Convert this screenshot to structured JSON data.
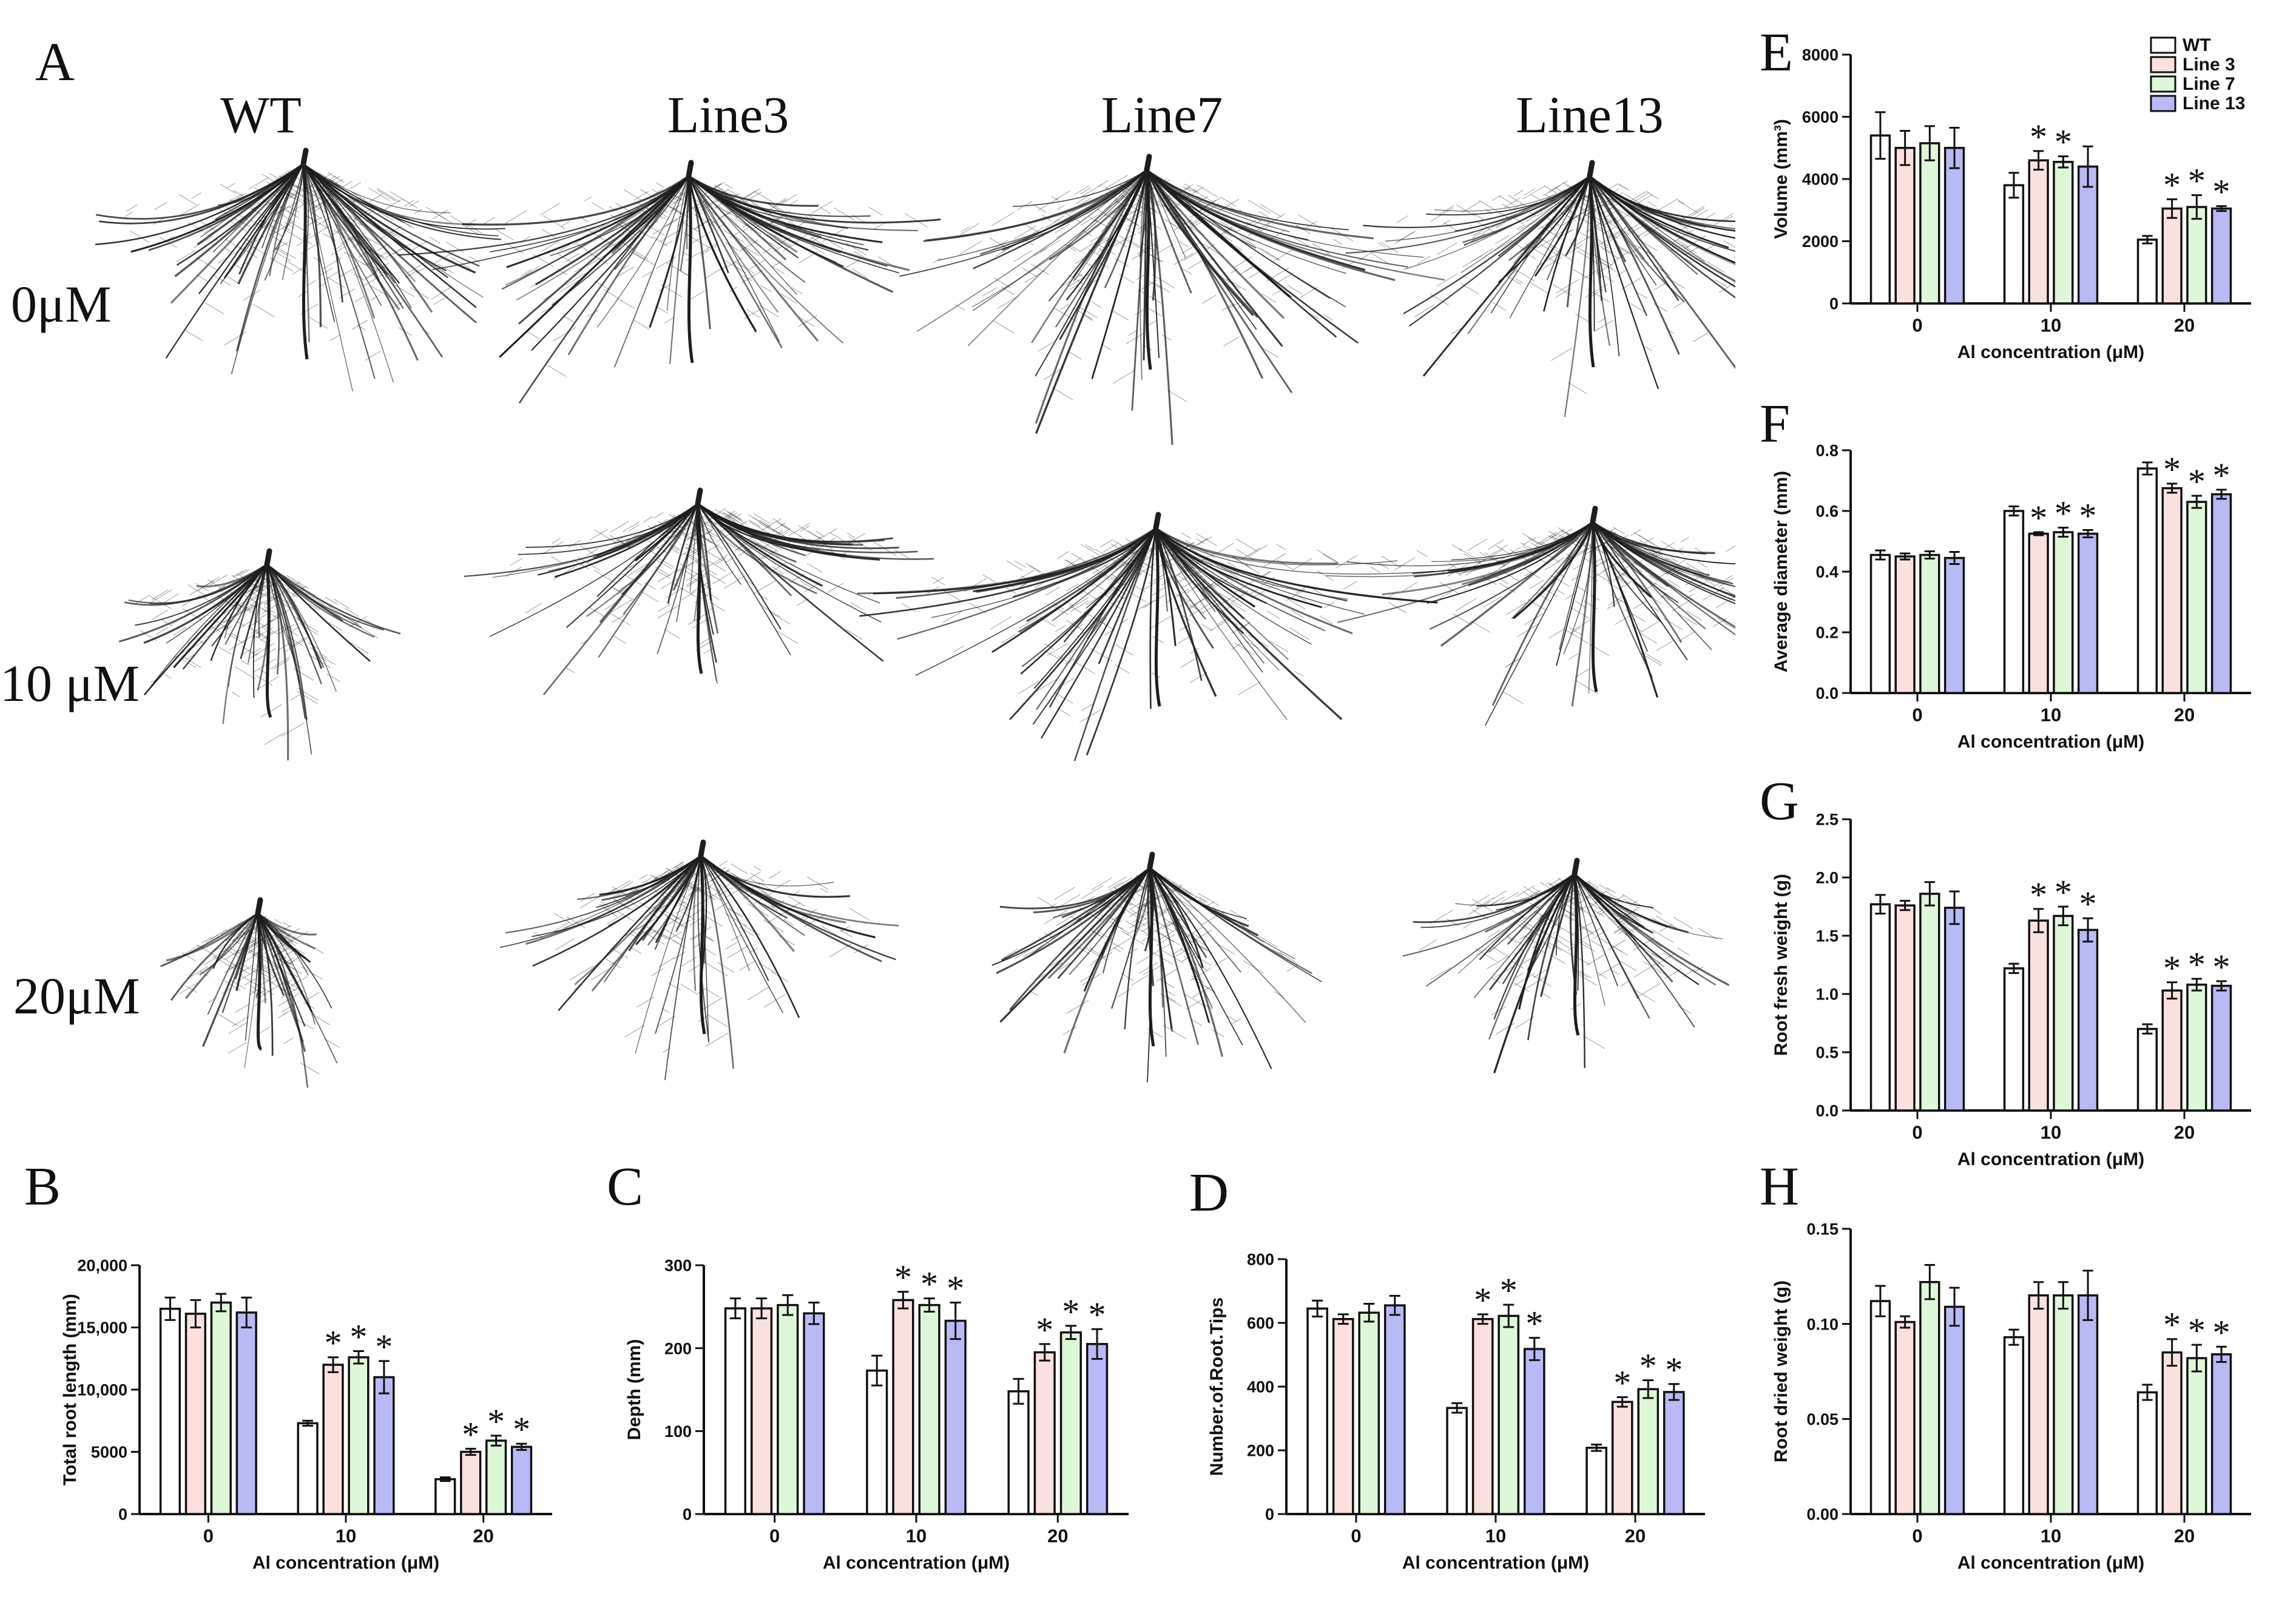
{
  "figure": {
    "photo_panel": {
      "letter": "A",
      "columns": [
        "WT",
        "Line3",
        "Line7",
        "Line13"
      ],
      "rows": [
        "0μM",
        "10 μM",
        "20μM"
      ]
    },
    "legend": [
      "WT",
      "Line 3",
      "Line 7",
      "Line 13"
    ]
  },
  "colors": {
    "series": [
      "#ffffff",
      "#fbe1dd",
      "#def7d8",
      "#b8baf6"
    ],
    "stroke": "#111111",
    "root": "#1e1e1e"
  },
  "chart_data": [
    {
      "id": "E",
      "type": "bar",
      "title": "",
      "xlabel": "Al concentration (μM)",
      "ylabel": "Volume (mm³)",
      "categories": [
        "0",
        "10",
        "20"
      ],
      "ylim": [
        0,
        8000
      ],
      "yticks": [
        "0",
        "2000",
        "4000",
        "6000",
        "8000"
      ],
      "series": [
        {
          "name": "WT",
          "values": [
            5400,
            3800,
            2050
          ],
          "errors": [
            750,
            400,
            120
          ]
        },
        {
          "name": "Line 3",
          "values": [
            5000,
            4600,
            3050
          ],
          "errors": [
            550,
            300,
            300
          ]
        },
        {
          "name": "Line 7",
          "values": [
            5150,
            4550,
            3100
          ],
          "errors": [
            550,
            180,
            380
          ]
        },
        {
          "name": "Line 13",
          "values": [
            5000,
            4400,
            3050
          ],
          "errors": [
            650,
            650,
            80
          ]
        }
      ],
      "significant": [
        [
          false,
          false,
          false
        ],
        [
          false,
          true,
          true
        ],
        [
          false,
          true,
          true
        ],
        [
          false,
          false,
          true
        ]
      ],
      "annotation": "*"
    },
    {
      "id": "F",
      "type": "bar",
      "title": "",
      "xlabel": "Al concentration (μM)",
      "ylabel": "Average diameter  (mm)",
      "categories": [
        "0",
        "10",
        "20"
      ],
      "ylim": [
        0,
        0.8
      ],
      "yticks": [
        "0.0",
        "0.2",
        "0.4",
        "0.6",
        "0.8"
      ],
      "series": [
        {
          "name": "WT",
          "values": [
            0.455,
            0.6,
            0.74
          ],
          "errors": [
            0.015,
            0.015,
            0.02
          ]
        },
        {
          "name": "Line 3",
          "values": [
            0.45,
            0.525,
            0.675
          ],
          "errors": [
            0.01,
            0.005,
            0.015
          ]
        },
        {
          "name": "Line 7",
          "values": [
            0.455,
            0.53,
            0.63
          ],
          "errors": [
            0.012,
            0.015,
            0.02
          ]
        },
        {
          "name": "Line 13",
          "values": [
            0.445,
            0.525,
            0.655
          ],
          "errors": [
            0.02,
            0.012,
            0.015
          ]
        }
      ],
      "significant": [
        [
          false,
          false,
          false
        ],
        [
          false,
          true,
          true
        ],
        [
          false,
          true,
          true
        ],
        [
          false,
          true,
          true
        ]
      ],
      "annotation": "*"
    },
    {
      "id": "G",
      "type": "bar",
      "title": "",
      "xlabel": "Al concentration (μM)",
      "ylabel": "Root fresh weight (g)",
      "categories": [
        "0",
        "10",
        "20"
      ],
      "ylim": [
        0,
        2.5
      ],
      "yticks": [
        "0.0",
        "0.5",
        "1.0",
        "1.5",
        "2.0",
        "2.5"
      ],
      "series": [
        {
          "name": "WT",
          "values": [
            1.77,
            1.22,
            0.7
          ],
          "errors": [
            0.08,
            0.04,
            0.04
          ]
        },
        {
          "name": "Line 3",
          "values": [
            1.76,
            1.63,
            1.03
          ],
          "errors": [
            0.04,
            0.1,
            0.07
          ]
        },
        {
          "name": "Line 7",
          "values": [
            1.86,
            1.67,
            1.08
          ],
          "errors": [
            0.1,
            0.08,
            0.05
          ]
        },
        {
          "name": "Line 13",
          "values": [
            1.74,
            1.55,
            1.07
          ],
          "errors": [
            0.14,
            0.1,
            0.04
          ]
        }
      ],
      "significant": [
        [
          false,
          false,
          false
        ],
        [
          false,
          true,
          true
        ],
        [
          false,
          true,
          true
        ],
        [
          false,
          true,
          true
        ]
      ],
      "annotation": "*"
    },
    {
      "id": "H",
      "type": "bar",
      "title": "",
      "xlabel": "Al concentration (μM)",
      "ylabel": "Root dried weight (g)",
      "categories": [
        "0",
        "10",
        "20"
      ],
      "ylim": [
        0,
        0.15
      ],
      "yticks": [
        "0.00",
        "0.05",
        "0.10",
        "0.15"
      ],
      "series": [
        {
          "name": "WT",
          "values": [
            0.112,
            0.093,
            0.064
          ],
          "errors": [
            0.008,
            0.004,
            0.004
          ]
        },
        {
          "name": "Line 3",
          "values": [
            0.101,
            0.115,
            0.085
          ],
          "errors": [
            0.003,
            0.007,
            0.007
          ]
        },
        {
          "name": "Line 7",
          "values": [
            0.122,
            0.115,
            0.082
          ],
          "errors": [
            0.009,
            0.007,
            0.007
          ]
        },
        {
          "name": "Line 13",
          "values": [
            0.109,
            0.115,
            0.084
          ],
          "errors": [
            0.01,
            0.013,
            0.004
          ]
        }
      ],
      "significant": [
        [
          false,
          false,
          false
        ],
        [
          false,
          false,
          true
        ],
        [
          false,
          false,
          true
        ],
        [
          false,
          false,
          true
        ]
      ],
      "annotation": "*"
    },
    {
      "id": "B",
      "type": "bar",
      "title": "",
      "xlabel": "Al concentration (μM)",
      "ylabel": "Total root length (mm)",
      "categories": [
        "0",
        "10",
        "20"
      ],
      "ylim": [
        0,
        20000
      ],
      "yticks": [
        "0",
        "5000",
        "10,000",
        "15,000",
        "20,000"
      ],
      "series": [
        {
          "name": "WT",
          "values": [
            16500,
            7300,
            2800
          ],
          "errors": [
            900,
            200,
            150
          ]
        },
        {
          "name": "Line 3",
          "values": [
            16100,
            12000,
            5000
          ],
          "errors": [
            1100,
            600,
            250
          ]
        },
        {
          "name": "Line 7",
          "values": [
            17000,
            12600,
            5900
          ],
          "errors": [
            700,
            500,
            400
          ]
        },
        {
          "name": "Line 13",
          "values": [
            16200,
            11000,
            5400
          ],
          "errors": [
            1200,
            1300,
            250
          ]
        }
      ],
      "significant": [
        [
          false,
          false,
          false
        ],
        [
          false,
          true,
          true
        ],
        [
          false,
          true,
          true
        ],
        [
          false,
          true,
          true
        ]
      ],
      "annotation": "*"
    },
    {
      "id": "C",
      "type": "bar",
      "title": "",
      "xlabel": "Al concentration (μM)",
      "ylabel": "Depth  (mm)",
      "categories": [
        "0",
        "10",
        "20"
      ],
      "ylim": [
        0,
        300
      ],
      "yticks": [
        "0",
        "100",
        "200",
        "300"
      ],
      "series": [
        {
          "name": "WT",
          "values": [
            248,
            173,
            148
          ],
          "errors": [
            12,
            18,
            15
          ]
        },
        {
          "name": "Line 3",
          "values": [
            248,
            258,
            195
          ],
          "errors": [
            12,
            10,
            10
          ]
        },
        {
          "name": "Line 7",
          "values": [
            252,
            252,
            219
          ],
          "errors": [
            12,
            8,
            8
          ]
        },
        {
          "name": "Line 13",
          "values": [
            242,
            233,
            205
          ],
          "errors": [
            13,
            22,
            18
          ]
        }
      ],
      "significant": [
        [
          false,
          false,
          false
        ],
        [
          false,
          true,
          true
        ],
        [
          false,
          true,
          true
        ],
        [
          false,
          true,
          true
        ]
      ],
      "annotation": "*"
    },
    {
      "id": "D",
      "type": "bar",
      "title": "",
      "xlabel": "Al concentration (μM)",
      "ylabel": "Number.of.Root.Tips",
      "categories": [
        "0",
        "10",
        "20"
      ],
      "ylim": [
        0,
        800
      ],
      "yticks": [
        "0",
        "200",
        "400",
        "600",
        "800"
      ],
      "series": [
        {
          "name": "WT",
          "values": [
            645,
            333,
            208
          ],
          "errors": [
            25,
            15,
            10
          ]
        },
        {
          "name": "Line 3",
          "values": [
            612,
            612,
            352
          ],
          "errors": [
            15,
            15,
            15
          ]
        },
        {
          "name": "Line 7",
          "values": [
            632,
            622,
            392
          ],
          "errors": [
            28,
            35,
            28
          ]
        },
        {
          "name": "Line 13",
          "values": [
            655,
            518,
            383
          ],
          "errors": [
            30,
            35,
            25
          ]
        }
      ],
      "significant": [
        [
          false,
          false,
          false
        ],
        [
          false,
          true,
          true
        ],
        [
          false,
          true,
          true
        ],
        [
          false,
          true,
          true
        ]
      ],
      "annotation": "*"
    }
  ]
}
